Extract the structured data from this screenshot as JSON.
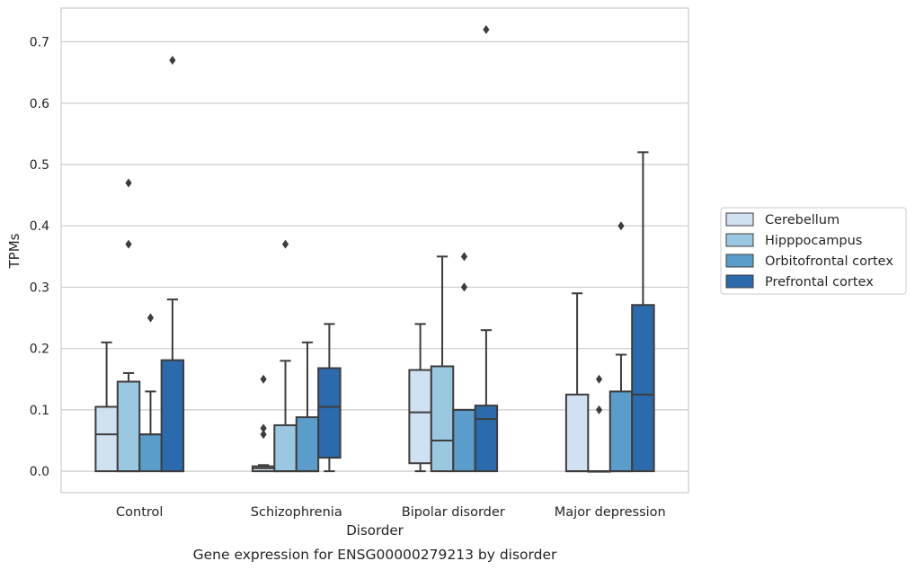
{
  "chart_data": {
    "type": "box",
    "title": "Gene expression for ENSG00000279213 by disorder",
    "xlabel": "Disorder",
    "ylabel": "TPMs",
    "ylim": [
      -0.035,
      0.755
    ],
    "yticks": [
      0.0,
      0.1,
      0.2,
      0.3,
      0.4,
      0.5,
      0.6,
      0.7
    ],
    "ytick_labels": [
      "0.0",
      "0.1",
      "0.2",
      "0.3",
      "0.4",
      "0.5",
      "0.6",
      "0.7"
    ],
    "grid": "horizontal",
    "legend_position": "right",
    "categories": [
      "Control",
      "Schizophrenia",
      "Bipolar disorder",
      "Major depression"
    ],
    "series": [
      {
        "name": "Cerebellum",
        "color": "#d0e1f2",
        "boxes": [
          {
            "whislo": 0.0,
            "q1": 0.0,
            "med": 0.06,
            "q3": 0.105,
            "whishi": 0.21,
            "fliers": []
          },
          {
            "whislo": 0.0,
            "q1": 0.0,
            "med": 0.005,
            "q3": 0.008,
            "whishi": 0.01,
            "fliers": [
              0.06,
              0.07,
              0.15
            ]
          },
          {
            "whislo": 0.0,
            "q1": 0.013,
            "med": 0.096,
            "q3": 0.165,
            "whishi": 0.24,
            "fliers": []
          },
          {
            "whislo": 0.0,
            "q1": 0.0,
            "med": 0.0,
            "q3": 0.125,
            "whishi": 0.29,
            "fliers": []
          }
        ]
      },
      {
        "name": "Hipppocampus",
        "color": "#9ac8e0",
        "boxes": [
          {
            "whislo": 0.0,
            "q1": 0.0,
            "med": 0.0,
            "q3": 0.146,
            "whishi": 0.16,
            "fliers": [
              0.37,
              0.47
            ]
          },
          {
            "whislo": 0.0,
            "q1": 0.0,
            "med": 0.0,
            "q3": 0.075,
            "whishi": 0.18,
            "fliers": [
              0.37
            ]
          },
          {
            "whislo": 0.0,
            "q1": 0.0,
            "med": 0.05,
            "q3": 0.171,
            "whishi": 0.35,
            "fliers": []
          },
          {
            "whislo": 0.0,
            "q1": 0.0,
            "med": 0.0,
            "q3": 0.0,
            "whishi": 0.0,
            "fliers": [
              0.1,
              0.15
            ]
          }
        ]
      },
      {
        "name": "Orbitofrontal cortex",
        "color": "#5a9dcb",
        "boxes": [
          {
            "whislo": 0.0,
            "q1": 0.0,
            "med": 0.06,
            "q3": 0.06,
            "whishi": 0.13,
            "fliers": [
              0.25
            ]
          },
          {
            "whislo": 0.0,
            "q1": 0.0,
            "med": 0.0,
            "q3": 0.088,
            "whishi": 0.21,
            "fliers": []
          },
          {
            "whislo": 0.0,
            "q1": 0.0,
            "med": 0.1,
            "q3": 0.1,
            "whishi": 0.1,
            "fliers": [
              0.3,
              0.35
            ]
          },
          {
            "whislo": 0.0,
            "q1": 0.0,
            "med": 0.0,
            "q3": 0.13,
            "whishi": 0.19,
            "fliers": [
              0.4
            ]
          }
        ]
      },
      {
        "name": "Prefrontal cortex",
        "color": "#2b6aac",
        "boxes": [
          {
            "whislo": 0.0,
            "q1": 0.0,
            "med": 0.0,
            "q3": 0.181,
            "whishi": 0.28,
            "fliers": [
              0.67
            ]
          },
          {
            "whislo": 0.0,
            "q1": 0.022,
            "med": 0.105,
            "q3": 0.168,
            "whishi": 0.24,
            "fliers": []
          },
          {
            "whislo": 0.0,
            "q1": 0.0,
            "med": 0.085,
            "q3": 0.107,
            "whishi": 0.23,
            "fliers": [
              0.72
            ]
          },
          {
            "whislo": 0.0,
            "q1": 0.0,
            "med": 0.125,
            "q3": 0.271,
            "whishi": 0.52,
            "fliers": []
          }
        ]
      }
    ]
  }
}
